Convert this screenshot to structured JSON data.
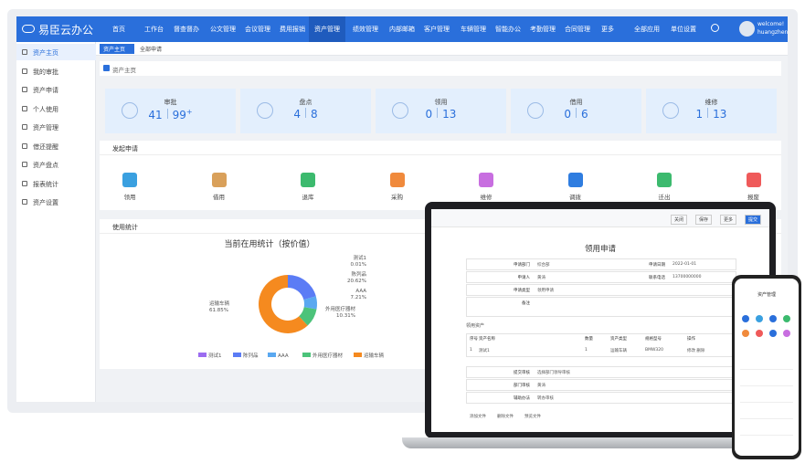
{
  "nav": {
    "logo": "易臣云办公",
    "items": [
      "首页",
      "工作台",
      "督查督办",
      "公文管理",
      "会议管理",
      "费用报销",
      "资产管理",
      "绩效管理",
      "内部邮箱",
      "客户管理",
      "车辆管理",
      "智能办公",
      "考勤管理",
      "合同管理",
      "更多",
      "全部应用",
      "单位设置"
    ],
    "active": 6,
    "user": [
      "welcome!",
      "huangzhen"
    ]
  },
  "sidebar": {
    "items": [
      "资产主页",
      "我的审批",
      "资产申请",
      "个人使用",
      "资产管理",
      "借还提醒",
      "资产盘点",
      "报表统计",
      "资产设置"
    ],
    "active": 0
  },
  "tabs": [
    "资产主页",
    "全部申请"
  ],
  "breadcrumb": "资产主页",
  "stats": [
    {
      "label": "审批",
      "a": "41",
      "b": "99",
      "sup": "+"
    },
    {
      "label": "盘点",
      "a": "4",
      "b": "8"
    },
    {
      "label": "领用",
      "a": "0",
      "b": "13"
    },
    {
      "label": "借用",
      "a": "0",
      "b": "6"
    },
    {
      "label": "维修",
      "a": "1",
      "b": "13"
    }
  ],
  "apply": {
    "title": "发起申请",
    "items": [
      {
        "name": "领用",
        "color": "#3aa0e0"
      },
      {
        "name": "借用",
        "color": "#d9a05a"
      },
      {
        "name": "退库",
        "color": "#3cba6e"
      },
      {
        "name": "采购",
        "color": "#f08a3c"
      },
      {
        "name": "维修",
        "color": "#c86ee0"
      },
      {
        "name": "调拨",
        "color": "#2f7de0"
      },
      {
        "name": "迁出",
        "color": "#3cba6e"
      },
      {
        "name": "报废",
        "color": "#ef5a5a"
      }
    ]
  },
  "usage_title": "使用统计",
  "chart_data": {
    "type": "pie",
    "title": "当前在用统计（按价值）",
    "categories": [
      "测试1",
      "陈列品",
      "AAA",
      "外用医疗器材",
      "运输车辆"
    ],
    "values": [
      0.01,
      20.62,
      7.21,
      10.31,
      61.85
    ],
    "value_labels": [
      "0.01%",
      "20.62%",
      "7.21%",
      "10.31%",
      "61.85%"
    ],
    "colors": [
      "#9b6cf0",
      "#5b7cf5",
      "#5aa8f0",
      "#4cc37a",
      "#f58a1f"
    ],
    "donut": true,
    "legend": "bottom"
  },
  "laptop": {
    "title": "领用申请",
    "buttons": [
      "关闭",
      "保存",
      "更多",
      "提交"
    ],
    "fields": [
      [
        "申请部门",
        "综合部",
        "申请日期",
        "2022-01-01"
      ],
      [
        "申请人",
        "黄涛",
        "联系电话",
        "13700000000"
      ],
      [
        "申请类型",
        "领用申请",
        "",
        ""
      ],
      [
        "备注",
        "",
        "",
        ""
      ]
    ],
    "section": "领用资产",
    "head": [
      "序号",
      "资产名称",
      "数量",
      "资产类型",
      "规格型号",
      "操作"
    ],
    "row": [
      "1",
      "测试1",
      "1",
      "运输车辆",
      "BMW320",
      "修改 删除"
    ],
    "approval": [
      [
        "提交审核",
        "选择部门领导审核"
      ],
      [
        "部门审核",
        "黄涛"
      ],
      [
        "辅助办法",
        "转办审核"
      ]
    ],
    "footer": [
      "添加文件",
      "删除文件",
      "预览文件"
    ]
  },
  "phone": {
    "title": "资产管理"
  }
}
